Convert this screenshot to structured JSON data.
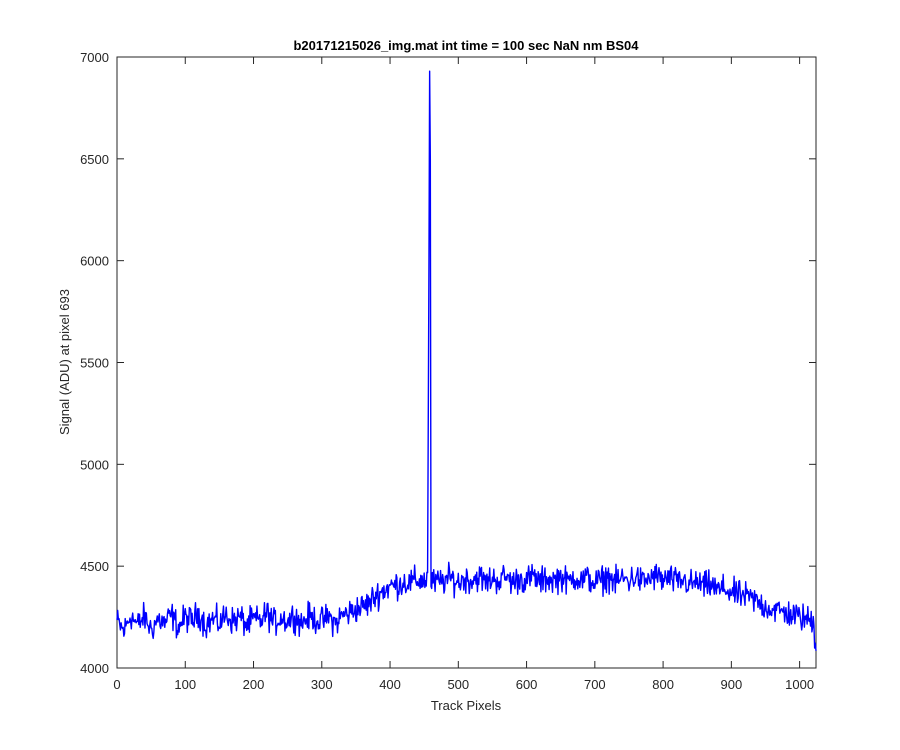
{
  "chart_data": {
    "type": "line",
    "title": "b20171215026_img.mat int time = 100 sec  NaN nm BS04",
    "xlabel": "Track Pixels",
    "ylabel": "Signal (ADU) at pixel 693",
    "xlim": [
      0,
      1024
    ],
    "ylim": [
      4000,
      7000
    ],
    "xticks": [
      0,
      100,
      200,
      300,
      400,
      500,
      600,
      700,
      800,
      900,
      1000
    ],
    "yticks": [
      4000,
      4500,
      5000,
      5500,
      6000,
      6500,
      7000
    ],
    "grid": false,
    "legend": "none",
    "series_color": "#0000ff",
    "series": [
      {
        "points": [
          [
            0,
            4230
          ],
          [
            10,
            4180
          ],
          [
            20,
            4260
          ],
          [
            30,
            4210
          ],
          [
            40,
            4250
          ],
          [
            50,
            4190
          ],
          [
            60,
            4240
          ],
          [
            70,
            4220
          ],
          [
            80,
            4260
          ],
          [
            90,
            4200
          ],
          [
            100,
            4250
          ],
          [
            110,
            4230
          ],
          [
            120,
            4270
          ],
          [
            130,
            4210
          ],
          [
            140,
            4240
          ],
          [
            150,
            4220
          ],
          [
            160,
            4260
          ],
          [
            170,
            4230
          ],
          [
            180,
            4250
          ],
          [
            190,
            4210
          ],
          [
            200,
            4240
          ],
          [
            210,
            4230
          ],
          [
            220,
            4270
          ],
          [
            230,
            4220
          ],
          [
            240,
            4250
          ],
          [
            250,
            4230
          ],
          [
            260,
            4260
          ],
          [
            270,
            4220
          ],
          [
            280,
            4250
          ],
          [
            290,
            4240
          ],
          [
            300,
            4230
          ],
          [
            310,
            4250
          ],
          [
            320,
            4220
          ],
          [
            330,
            4260
          ],
          [
            340,
            4270
          ],
          [
            350,
            4290
          ],
          [
            360,
            4300
          ],
          [
            370,
            4320
          ],
          [
            380,
            4360
          ],
          [
            390,
            4380
          ],
          [
            400,
            4400
          ],
          [
            410,
            4410
          ],
          [
            420,
            4420
          ],
          [
            430,
            4420
          ],
          [
            440,
            4430
          ],
          [
            450,
            4430
          ],
          [
            455,
            4440
          ],
          [
            457,
            6000
          ],
          [
            458,
            6930
          ],
          [
            459,
            6500
          ],
          [
            460,
            4420
          ],
          [
            470,
            4420
          ],
          [
            480,
            4430
          ],
          [
            490,
            4440
          ],
          [
            500,
            4420
          ],
          [
            510,
            4440
          ],
          [
            520,
            4430
          ],
          [
            530,
            4450
          ],
          [
            540,
            4420
          ],
          [
            550,
            4440
          ],
          [
            560,
            4430
          ],
          [
            570,
            4450
          ],
          [
            580,
            4420
          ],
          [
            590,
            4440
          ],
          [
            600,
            4430
          ],
          [
            610,
            4450
          ],
          [
            620,
            4420
          ],
          [
            630,
            4440
          ],
          [
            640,
            4430
          ],
          [
            650,
            4450
          ],
          [
            660,
            4420
          ],
          [
            670,
            4450
          ],
          [
            680,
            4430
          ],
          [
            690,
            4440
          ],
          [
            700,
            4420
          ],
          [
            710,
            4430
          ],
          [
            720,
            4450
          ],
          [
            730,
            4420
          ],
          [
            740,
            4440
          ],
          [
            750,
            4430
          ],
          [
            760,
            4450
          ],
          [
            770,
            4420
          ],
          [
            780,
            4440
          ],
          [
            790,
            4450
          ],
          [
            800,
            4430
          ],
          [
            810,
            4440
          ],
          [
            820,
            4420
          ],
          [
            830,
            4430
          ],
          [
            840,
            4410
          ],
          [
            850,
            4420
          ],
          [
            860,
            4400
          ],
          [
            870,
            4410
          ],
          [
            880,
            4380
          ],
          [
            890,
            4390
          ],
          [
            900,
            4370
          ],
          [
            910,
            4360
          ],
          [
            920,
            4350
          ],
          [
            930,
            4340
          ],
          [
            940,
            4320
          ],
          [
            950,
            4300
          ],
          [
            960,
            4290
          ],
          [
            970,
            4280
          ],
          [
            980,
            4270
          ],
          [
            990,
            4260
          ],
          [
            1000,
            4250
          ],
          [
            1010,
            4240
          ],
          [
            1020,
            4230
          ],
          [
            1024,
            4100
          ]
        ],
        "noise_amplitude": 75
      }
    ]
  }
}
